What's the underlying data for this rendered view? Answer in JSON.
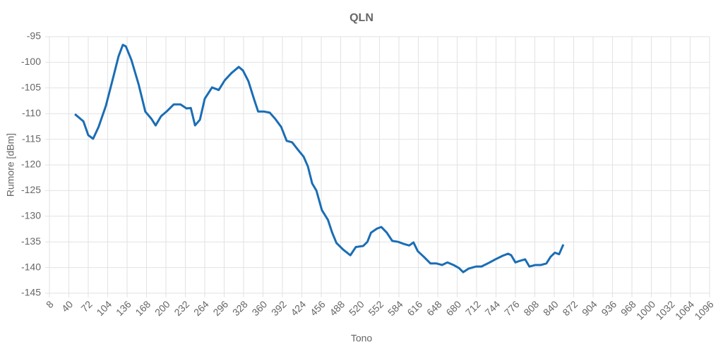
{
  "chart_data": {
    "type": "line",
    "title": "QLN",
    "x_label": "Tono",
    "y_label": "Rumore [dBm]",
    "x": [
      50,
      64,
      72,
      80,
      89,
      101,
      113,
      122,
      129,
      134,
      143,
      155,
      166,
      176,
      183,
      192,
      201,
      213,
      224,
      234,
      241,
      248,
      256,
      264,
      276,
      287,
      297,
      308,
      320,
      327,
      336,
      345,
      352,
      362,
      371,
      380,
      390,
      399,
      408,
      418,
      427,
      434,
      441,
      448,
      457,
      467,
      474,
      481,
      492,
      504,
      513,
      525,
      532,
      538,
      548,
      555,
      564,
      573,
      583,
      592,
      601,
      608,
      615,
      625,
      636,
      646,
      655,
      664,
      674,
      683,
      690,
      699,
      711,
      720,
      732,
      743,
      755,
      764,
      769,
      776,
      783,
      792,
      799,
      809,
      818,
      827,
      834,
      841,
      848,
      855
    ],
    "series": [
      {
        "name": "QLN",
        "color": "#1a6db5",
        "values": [
          -110.1,
          -111.5,
          -114.2,
          -114.9,
          -112.6,
          -108.5,
          -103,
          -98.8,
          -96.6,
          -96.9,
          -99.5,
          -104.3,
          -109.6,
          -111,
          -112.3,
          -110.5,
          -109.6,
          -108.2,
          -108.2,
          -109,
          -108.9,
          -112.3,
          -111.2,
          -107.1,
          -104.9,
          -105.4,
          -103.5,
          -102.1,
          -100.9,
          -101.6,
          -103.7,
          -107.1,
          -109.6,
          -109.6,
          -109.8,
          -111,
          -112.6,
          -115.3,
          -115.6,
          -117.1,
          -118.4,
          -120.3,
          -123.6,
          -125,
          -128.8,
          -130.7,
          -133.2,
          -135.2,
          -136.5,
          -137.6,
          -136,
          -135.8,
          -135,
          -133.2,
          -132.4,
          -132.1,
          -133.2,
          -134.8,
          -135,
          -135.4,
          -135.7,
          -135.1,
          -136.8,
          -137.9,
          -139.2,
          -139.2,
          -139.5,
          -139,
          -139.5,
          -140.1,
          -140.9,
          -140.2,
          -139.8,
          -139.8,
          -139.1,
          -138.4,
          -137.7,
          -137.3,
          -137.6,
          -139,
          -138.7,
          -138.4,
          -139.8,
          -139.5,
          -139.5,
          -139.2,
          -137.9,
          -137.1,
          -137.4,
          -135.5
        ]
      }
    ],
    "xlim": [
      8,
      1096
    ],
    "xticks": [
      8,
      40,
      72,
      104,
      136,
      168,
      200,
      232,
      264,
      296,
      328,
      360,
      392,
      424,
      456,
      488,
      520,
      552,
      584,
      616,
      648,
      680,
      712,
      744,
      776,
      808,
      840,
      872,
      904,
      936,
      968,
      1000,
      1032,
      1064,
      1096
    ],
    "ylim": [
      -145,
      -95
    ],
    "yticks": [
      -145,
      -140,
      -135,
      -130,
      -125,
      -120,
      -115,
      -110,
      -105,
      -100,
      -95
    ],
    "grid": true
  }
}
